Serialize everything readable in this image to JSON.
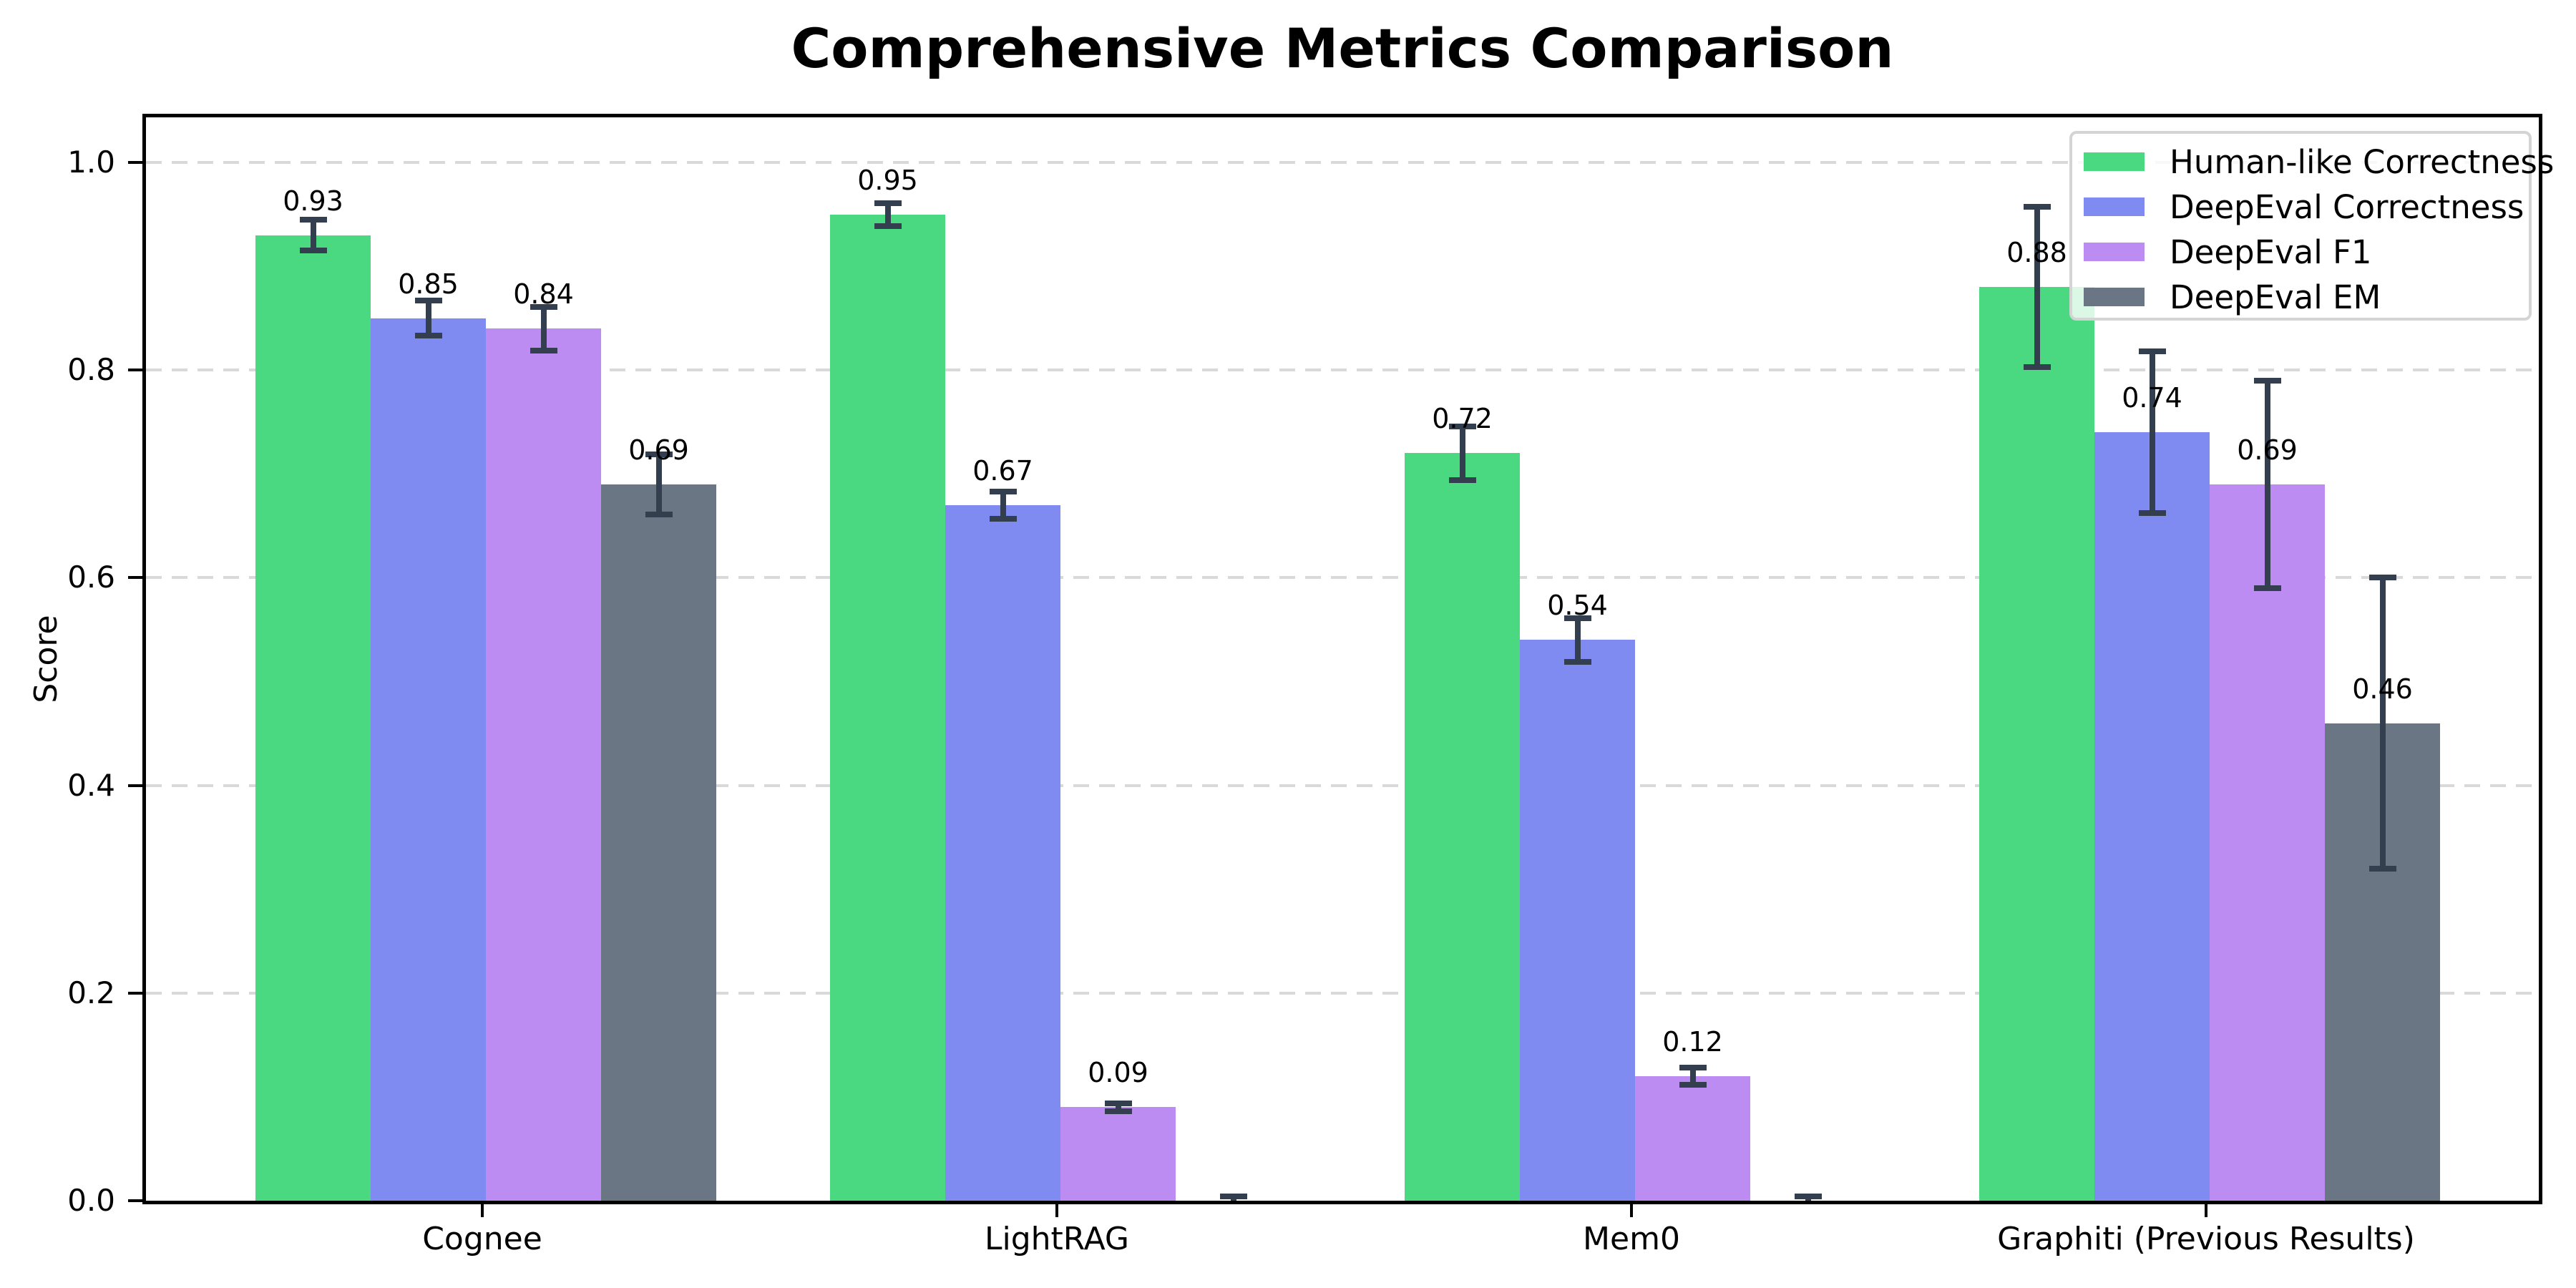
{
  "chart_data": {
    "type": "bar",
    "title": "Comprehensive Metrics Comparison",
    "xlabel": "",
    "ylabel": "Score",
    "categories": [
      "Cognee",
      "LightRAG",
      "Mem0",
      "Graphiti (Previous Results)"
    ],
    "series": [
      {
        "name": "Human-like Correctness",
        "color": "#4ad881",
        "values": [
          0.93,
          0.95,
          0.72,
          0.88
        ],
        "errors": [
          0.015,
          0.011,
          0.026,
          0.077
        ],
        "bar_labels": [
          "0.93",
          "0.95",
          "0.72",
          "0.88"
        ]
      },
      {
        "name": "DeepEval Correctness",
        "color": "#7f8bf0",
        "values": [
          0.85,
          0.67,
          0.54,
          0.74
        ],
        "errors": [
          0.017,
          0.013,
          0.021,
          0.078
        ],
        "bar_labels": [
          "0.85",
          "0.67",
          "0.54",
          "0.74"
        ]
      },
      {
        "name": "DeepEval F1",
        "color": "#bd8cf2",
        "values": [
          0.84,
          0.09,
          0.12,
          0.69
        ],
        "errors": [
          0.021,
          0.004,
          0.008,
          0.1
        ],
        "bar_labels": [
          "0.84",
          "0.09",
          "0.12",
          "0.69"
        ]
      },
      {
        "name": "DeepEval EM",
        "color": "#6b7684",
        "values": [
          0.69,
          0.0,
          0.0,
          0.46
        ],
        "errors": [
          0.029,
          0.004,
          0.004,
          0.14
        ],
        "bar_labels": [
          "0.69",
          null,
          null,
          "0.46"
        ]
      }
    ],
    "yticks": [
      {
        "value": 0.0,
        "label": "0.0"
      },
      {
        "value": 0.2,
        "label": "0.2"
      },
      {
        "value": 0.4,
        "label": "0.4"
      },
      {
        "value": 0.6,
        "label": "0.6"
      },
      {
        "value": 0.8,
        "label": "0.8"
      },
      {
        "value": 1.0,
        "label": "1.0"
      }
    ],
    "ylim": [
      0,
      1.05
    ],
    "grid": "horizontal-dashed",
    "legend_position": "upper-right"
  },
  "style": {
    "error_bar_color": "#333e4e",
    "grid_color": "#d9d9d9",
    "spine_color": "#000000",
    "legend_border_color": "#d4d4d4",
    "background_color": "#ffffff"
  }
}
